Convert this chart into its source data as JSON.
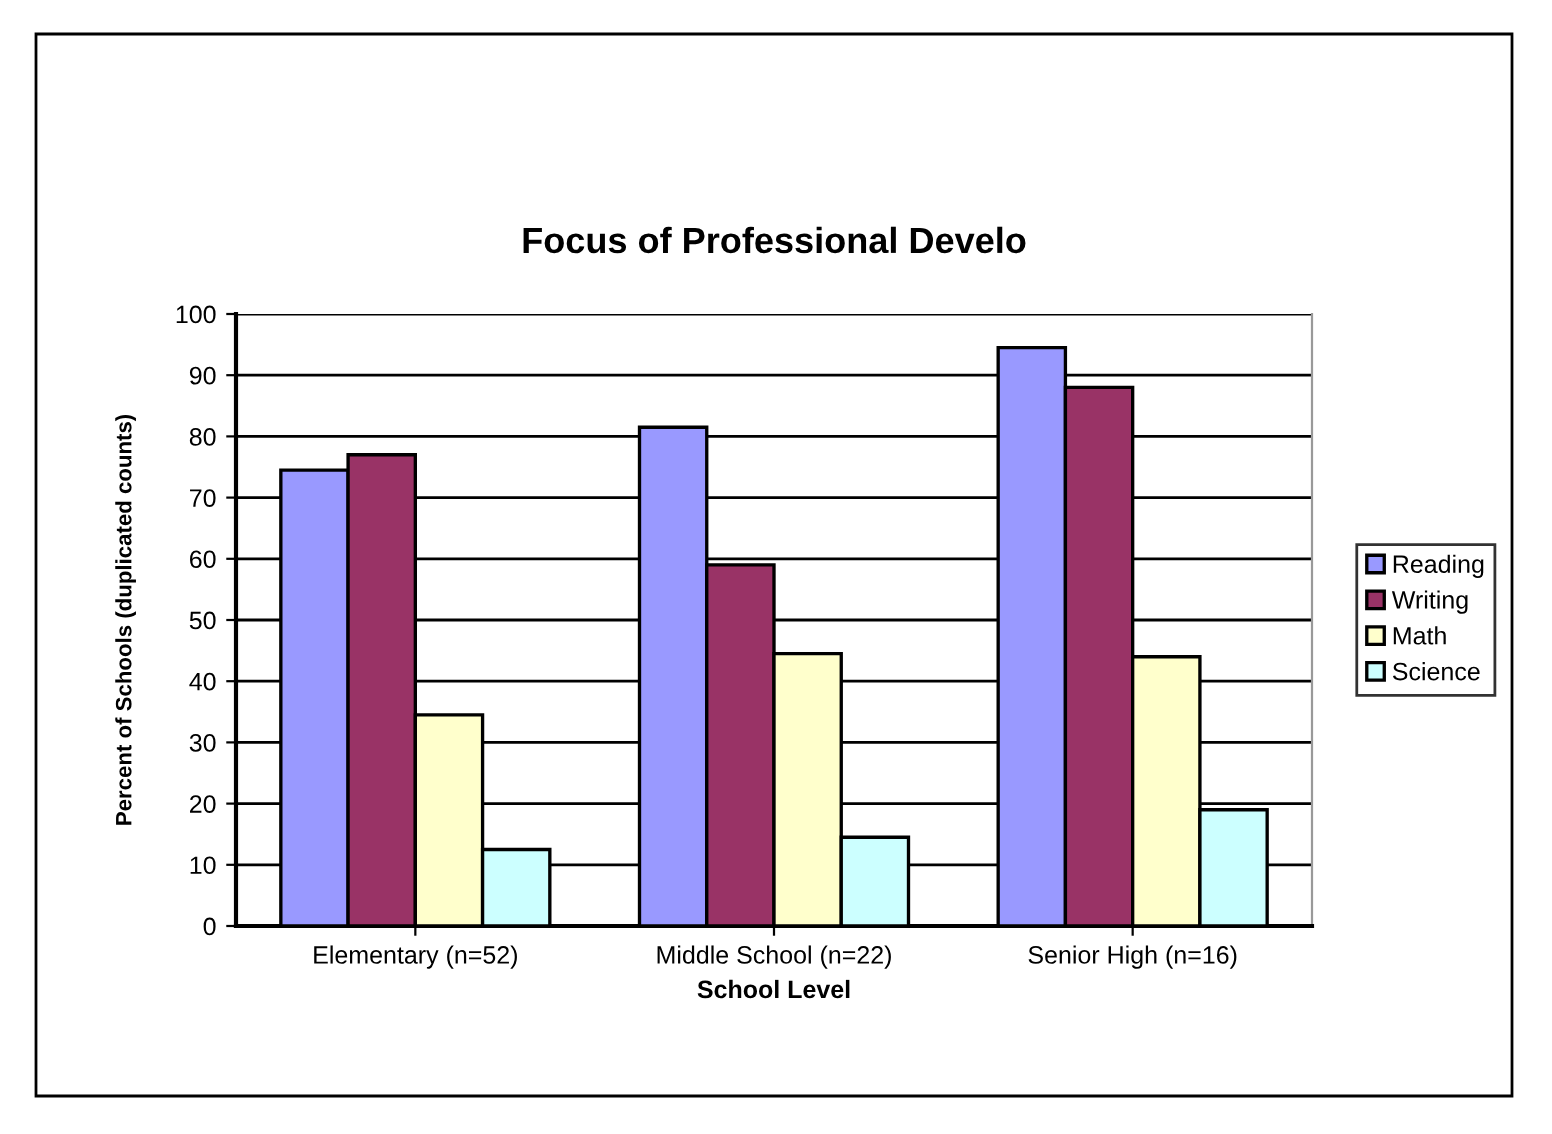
{
  "chart_data": {
    "type": "bar",
    "title": "Focus of Professional Develo",
    "xlabel": "School Level",
    "ylabel": "Percent of Schools (duplicated counts)",
    "categories": [
      "Elementary (n=52)",
      "Middle School (n=22)",
      "Senior High (n=16)"
    ],
    "series": [
      {
        "name": "Reading",
        "color": "#9999ff",
        "values": [
          74.5,
          81.5,
          94.5
        ]
      },
      {
        "name": "Writing",
        "color": "#993366",
        "values": [
          77,
          59,
          88
        ]
      },
      {
        "name": "Math",
        "color": "#ffffcc",
        "values": [
          34.5,
          44.5,
          44
        ]
      },
      {
        "name": "Science",
        "color": "#ccffff",
        "values": [
          12.5,
          14.5,
          19
        ]
      }
    ],
    "ylim": [
      0,
      100
    ],
    "yticks": [
      0,
      10,
      20,
      30,
      40,
      50,
      60,
      70,
      80,
      90,
      100
    ],
    "grid": "y",
    "legend": "right"
  }
}
